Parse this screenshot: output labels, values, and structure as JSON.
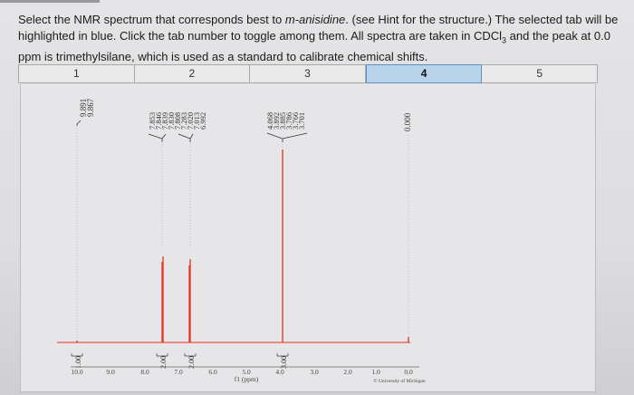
{
  "question": {
    "text_before": "Select the NMR spectrum that corresponds best to ",
    "compound": "m-anisidine",
    "text_after": ". (see Hint for the structure.) The selected tab will be highlighted in blue. Click the tab number to toggle among them. All spectra are taken in CDCl",
    "subscript": "3",
    "text_end": " and the peak at 0.0 ppm is trimethylsilane, which is used as a standard to calibrate chemical shifts."
  },
  "tabs": [
    {
      "label": "1",
      "selected": false
    },
    {
      "label": "2",
      "selected": false
    },
    {
      "label": "3",
      "selected": false
    },
    {
      "label": "4",
      "selected": true
    },
    {
      "label": "5",
      "selected": false
    }
  ],
  "spectrum": {
    "peak_labels": {
      "group1": [
        "9.891",
        "9.867"
      ],
      "group2": [
        "7.853",
        "7.846",
        "7.839",
        "7.830",
        "7.808",
        "7.283",
        "7.020",
        "7.013",
        "6.992"
      ],
      "group3": [
        "4.068",
        "3.892",
        "3.885",
        "3.786",
        "3.766",
        "3.701"
      ],
      "group4": [
        "0.000"
      ]
    },
    "integrals": [
      "1.00",
      "2.00",
      "2.00",
      "3.00"
    ],
    "x_ticks": [
      "10.0",
      "9.0",
      "8.0",
      "7.0",
      "6.0",
      "5.0",
      "4.0",
      "3.0",
      "2.0",
      "1.0",
      "0.0"
    ],
    "x_axis_label": "f1 (ppm)",
    "credit": "© University of Michigan",
    "colors": {
      "trace": "#e8321e",
      "integral": "#3a3a3a",
      "text": "#333333",
      "tab_selected": "#b9d3ea"
    }
  }
}
